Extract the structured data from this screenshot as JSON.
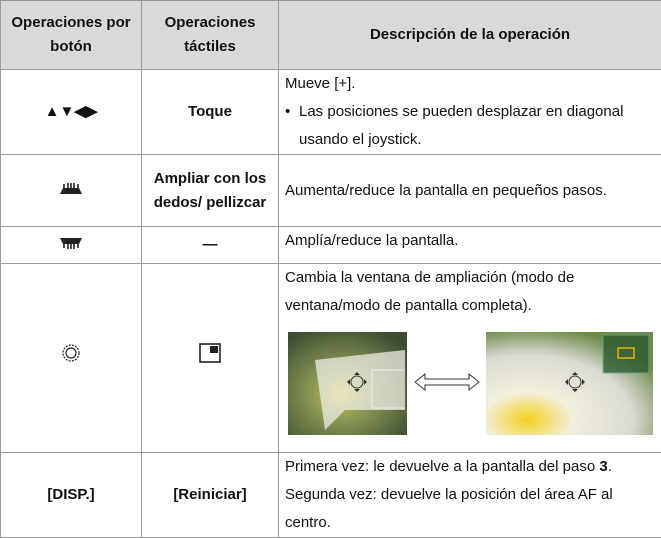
{
  "table": {
    "header": [
      "Operaciones por botón",
      "Operaciones táctiles",
      "Descripción de la operación"
    ],
    "rows": [
      {
        "button": "▲▼◀▶",
        "touch": "Toque",
        "description": "Mueve [+].",
        "bullet": "Las posiciones se pueden desplazar en diagonal usando el joystick."
      },
      {
        "touch": "Ampliar con los dedos/ pellizcar",
        "description": "Aumenta/reduce la pantalla en pequeños pasos."
      },
      {
        "touch": "—",
        "description": "Amplía/reduce la pantalla."
      },
      {
        "description": "Cambia la ventana de ampliación (modo de ventana/modo de pantalla completa)."
      },
      {
        "button": "[DISP.]",
        "touch": "[Reiniciar]",
        "description_parts": [
          "Primera vez: le devuelve a la pantalla del paso ",
          "3",
          "."
        ],
        "description2": "Segunda vez: devuelve la posición del área AF al centro."
      }
    ]
  }
}
